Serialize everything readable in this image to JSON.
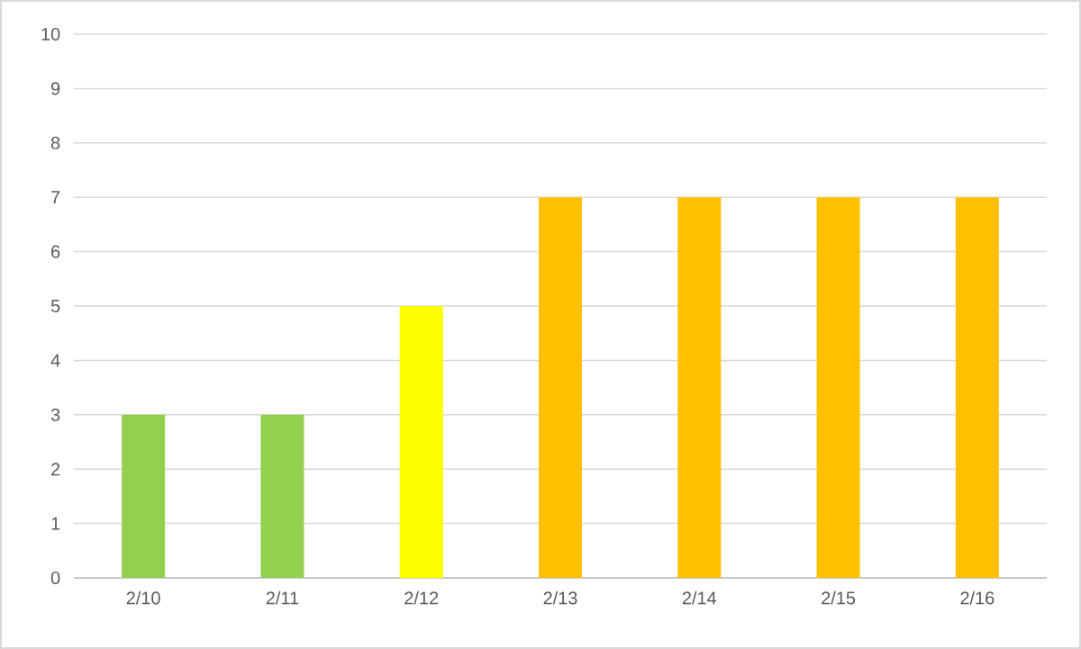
{
  "chart_data": {
    "type": "bar",
    "categories": [
      "2/10",
      "2/11",
      "2/12",
      "2/13",
      "2/14",
      "2/15",
      "2/16"
    ],
    "values": [
      3,
      3,
      5,
      7,
      7,
      7,
      7
    ],
    "colors": [
      "#92d050",
      "#92d050",
      "#ffff00",
      "#ffc000",
      "#ffc000",
      "#ffc000",
      "#ffc000"
    ],
    "ylim": [
      0,
      10
    ],
    "yticks": [
      0,
      1,
      2,
      3,
      4,
      5,
      6,
      7,
      8,
      9,
      10
    ],
    "grid": "y"
  }
}
